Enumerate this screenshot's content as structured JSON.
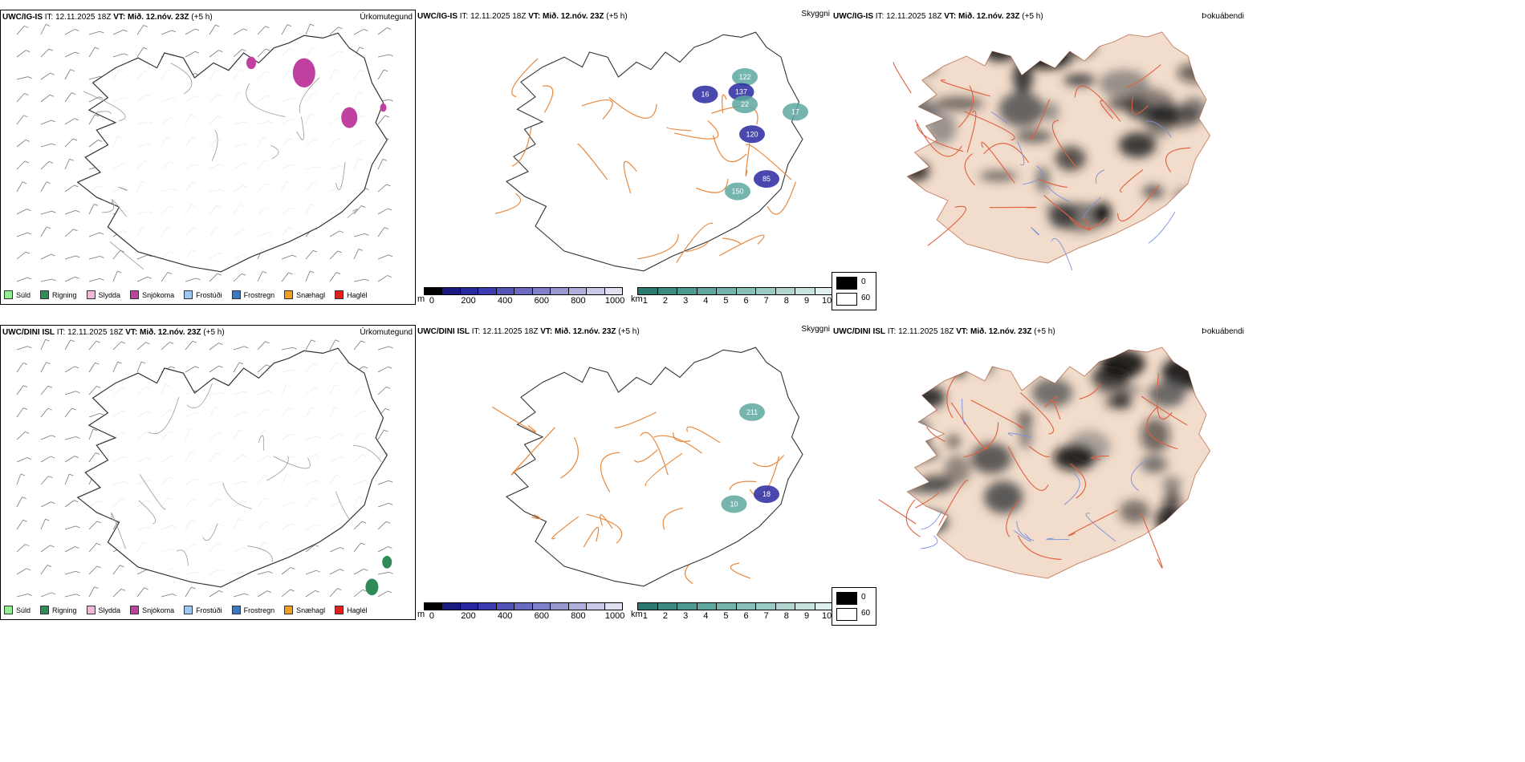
{
  "rows": [
    {
      "model": "UWC/IG-IS",
      "panels": {
        "precip": {
          "it_label": "IT:",
          "it_value": "12.11.2025 18Z",
          "vt_label": "VT:",
          "vt_value": "Mið. 12.nóv. 23Z",
          "lead": "(+5 h)",
          "type": "Úrkomutegund"
        },
        "visibility": {
          "it_label": "IT:",
          "it_value": "12.11.2025 18Z",
          "vt_label": "VT:",
          "vt_value": "Mið. 12.nóv. 23Z",
          "lead": "(+5 h)",
          "type": "Skyggni"
        },
        "fog": {
          "it_label": "IT:",
          "it_value": "12.11.2025 18Z",
          "vt_label": "VT:",
          "vt_value": "Mið. 12.nóv. 23Z",
          "lead": "(+5 h)",
          "type": "Þokuábendi"
        }
      },
      "visibility_labels": [
        "122",
        "137",
        "22",
        "120",
        "150",
        "85",
        "17",
        "16"
      ]
    },
    {
      "model": "UWC/DINI ISL",
      "panels": {
        "precip": {
          "it_label": "IT:",
          "it_value": "12.11.2025 18Z",
          "vt_label": "VT:",
          "vt_value": "Mið. 12.nóv. 23Z",
          "lead": "(+5 h)",
          "type": "Úrkomutegund"
        },
        "visibility": {
          "it_label": "IT:",
          "it_value": "12.11.2025 18Z",
          "vt_label": "VT:",
          "vt_value": "Mið. 12.nóv. 23Z",
          "lead": "(+5 h)",
          "type": "Skyggni"
        },
        "fog": {
          "it_label": "IT:",
          "it_value": "12.11.2025 18Z",
          "vt_label": "VT:",
          "vt_value": "Mið. 12.nóv. 23Z",
          "lead": "(+5 h)",
          "type": "Þokuábendi"
        }
      },
      "visibility_labels": [
        "211",
        "18",
        "10"
      ]
    }
  ],
  "precip_legend": [
    {
      "label": "Súld",
      "color": "#90ee90"
    },
    {
      "label": "Rigning",
      "color": "#2e8b57"
    },
    {
      "label": "Slydda",
      "color": "#f4b6d8"
    },
    {
      "label": "Snjókoma",
      "color": "#c040a0"
    },
    {
      "label": "Frostúði",
      "color": "#9ec6f0"
    },
    {
      "label": "Frostregn",
      "color": "#3a78c0"
    },
    {
      "label": "Snæhagl",
      "color": "#f0a020"
    },
    {
      "label": "Haglél",
      "color": "#e02020"
    }
  ],
  "visibility_legend": {
    "height_unit": "m",
    "height_ticks": [
      "0",
      "200",
      "400",
      "600",
      "800",
      "1000"
    ],
    "height_colors": [
      "#000000",
      "#1a1a80",
      "#2828a0",
      "#3c3cb0",
      "#5454b8",
      "#6a6ac0",
      "#8080c8",
      "#9898d0",
      "#b0b0dc",
      "#c8c8e8",
      "#e0e0f0"
    ],
    "dist_unit": "km",
    "dist_ticks": [
      "1",
      "2",
      "3",
      "4",
      "5",
      "6",
      "7",
      "8",
      "9",
      "10"
    ],
    "dist_colors": [
      "#2a7a70",
      "#3c8a80",
      "#4c9a90",
      "#5ea8a0",
      "#72b4ac",
      "#86c0b8",
      "#9acac4",
      "#b0d6d0",
      "#c8e2de",
      "#e0f0ee"
    ]
  },
  "fog_legend": {
    "max_label": "0",
    "min_label": "60",
    "max_color": "#000000",
    "min_color": "#ffffff"
  },
  "colors": {
    "roads": "#e8883c",
    "roads_fog": "#e06040",
    "land_fog": "#f2dccb",
    "rivers": "#7a90e0",
    "coast": "#333333"
  }
}
